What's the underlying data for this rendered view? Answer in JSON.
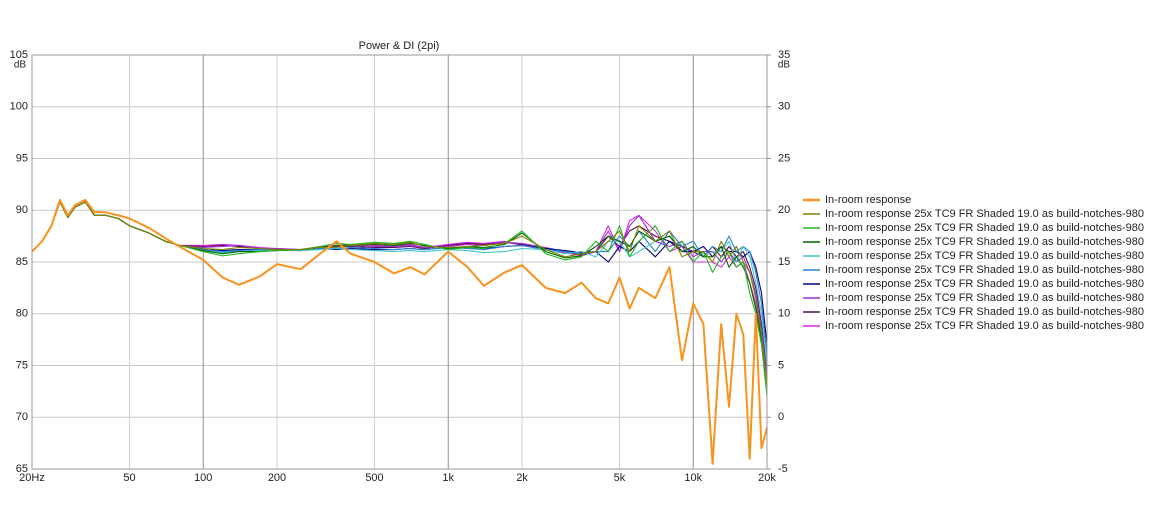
{
  "chart_data": {
    "type": "line",
    "title": "Power & DI (2pi)",
    "y_unit": "dB",
    "y2_unit": "dB",
    "xscale": "log",
    "grid": true,
    "x": [
      20,
      22,
      24,
      26,
      28,
      30,
      33,
      36,
      40,
      45,
      50,
      60,
      70,
      80,
      100,
      120,
      140,
      170,
      200,
      250,
      300,
      350,
      400,
      500,
      600,
      700,
      800,
      1000,
      1200,
      1400,
      1700,
      2000,
      2500,
      3000,
      3500,
      4000,
      4500,
      5000,
      5500,
      6000,
      7000,
      8000,
      9000,
      10000,
      11000,
      12000,
      13000,
      14000,
      15000,
      16000,
      17000,
      18000,
      19000,
      20000
    ],
    "xlim": [
      20,
      20000
    ],
    "xticks": [
      {
        "value": 20,
        "label": "20Hz"
      },
      50,
      100,
      200,
      500,
      {
        "value": 1000,
        "label": "1k"
      },
      {
        "value": 2000,
        "label": "2k"
      },
      {
        "value": 5000,
        "label": "5k"
      },
      {
        "value": 10000,
        "label": "10k"
      },
      {
        "value": 20000,
        "label": "20k"
      }
    ],
    "ylim": [
      65,
      105
    ],
    "yticks": [
      65,
      70,
      75,
      80,
      85,
      90,
      95,
      100,
      105
    ],
    "y2lim": [
      -5,
      35
    ],
    "y2ticks": [
      -5,
      0,
      5,
      10,
      15,
      20,
      25,
      30,
      35
    ],
    "series": [
      {
        "name": "In-room response",
        "color": "#f7931e",
        "values": [
          86.0,
          87.0,
          88.5,
          91.0,
          89.5,
          90.5,
          91.0,
          89.8,
          89.8,
          89.5,
          89.2,
          88.3,
          87.3,
          86.5,
          85.2,
          83.5,
          82.8,
          83.6,
          84.8,
          84.3,
          85.8,
          87.0,
          85.8,
          85.0,
          83.9,
          84.5,
          83.8,
          86.0,
          84.5,
          82.7,
          84.0,
          84.7,
          82.5,
          82.0,
          83.0,
          81.5,
          81.0,
          83.5,
          80.5,
          82.5,
          81.5,
          84.5,
          75.5,
          81.0,
          79.0,
          65.5,
          79.0,
          71.0,
          80.0,
          78.0,
          66.0,
          80.0,
          67.0,
          69.0
        ]
      },
      {
        "name": "In-room response 25x TC9 FR Shaded 19.0 as build-notches-980",
        "color": "#808000",
        "values": [
          86.0,
          87.0,
          88.5,
          90.8,
          89.3,
          90.3,
          90.8,
          89.5,
          89.5,
          89.2,
          88.5,
          87.8,
          87.0,
          86.6,
          86.3,
          86.2,
          86.4,
          86.3,
          86.2,
          86.2,
          86.4,
          86.4,
          86.6,
          86.8,
          86.7,
          86.9,
          86.5,
          86.4,
          86.5,
          86.6,
          86.8,
          87.5,
          86.2,
          85.5,
          85.8,
          86.0,
          87.0,
          88.0,
          86.0,
          88.5,
          87.0,
          88.0,
          85.5,
          86.0,
          86.0,
          85.0,
          87.0,
          85.5,
          86.5,
          85.0,
          84.0,
          81.5,
          78.0,
          73.0
        ]
      },
      {
        "name": "In-room response 25x TC9 FR Shaded 19.0 as build-notches-980",
        "color": "#22b822",
        "values": [
          86.0,
          87.0,
          88.5,
          90.8,
          89.3,
          90.3,
          90.8,
          89.5,
          89.5,
          89.2,
          88.5,
          87.8,
          87.0,
          86.6,
          86.0,
          85.6,
          85.8,
          86.0,
          86.1,
          86.2,
          86.5,
          86.8,
          86.7,
          86.9,
          86.8,
          87.0,
          86.7,
          86.2,
          86.4,
          86.3,
          86.8,
          88.0,
          85.8,
          85.2,
          85.5,
          87.0,
          86.0,
          88.5,
          85.5,
          87.0,
          88.5,
          86.0,
          87.0,
          85.0,
          86.0,
          84.0,
          85.5,
          86.0,
          84.5,
          85.0,
          82.0,
          80.0,
          77.0,
          72.0
        ]
      },
      {
        "name": "In-room response 25x TC9 FR Shaded 19.0 as build-notches-980",
        "color": "#006400",
        "values": [
          86.0,
          87.0,
          88.5,
          90.8,
          89.3,
          90.3,
          90.8,
          89.5,
          89.5,
          89.2,
          88.5,
          87.8,
          87.0,
          86.6,
          86.1,
          85.8,
          86.0,
          86.0,
          86.1,
          86.2,
          86.4,
          86.6,
          86.6,
          86.7,
          86.6,
          86.8,
          86.6,
          86.3,
          86.5,
          86.4,
          86.7,
          87.8,
          86.0,
          85.4,
          85.6,
          86.5,
          87.5,
          87.0,
          86.5,
          88.0,
          87.0,
          87.5,
          86.0,
          86.5,
          85.5,
          85.5,
          86.5,
          84.5,
          85.5,
          84.5,
          83.0,
          80.5,
          77.5,
          73.0
        ]
      },
      {
        "name": "In-room response 25x TC9 FR Shaded 19.0 as build-notches-980",
        "color": "#3cc8c8",
        "values": [
          86.0,
          87.0,
          88.5,
          90.8,
          89.3,
          90.3,
          90.8,
          89.5,
          89.5,
          89.2,
          88.5,
          87.8,
          87.0,
          86.6,
          86.1,
          85.9,
          86.0,
          86.1,
          86.1,
          86.1,
          86.2,
          86.3,
          86.2,
          86.1,
          86.0,
          86.1,
          86.0,
          86.2,
          86.1,
          85.9,
          86.0,
          86.3,
          86.2,
          85.8,
          86.0,
          85.5,
          87.0,
          87.0,
          85.5,
          86.0,
          87.0,
          87.5,
          86.0,
          86.5,
          85.5,
          86.0,
          86.0,
          87.0,
          85.0,
          86.5,
          85.5,
          83.0,
          80.0,
          75.0
        ]
      },
      {
        "name": "In-room response 25x TC9 FR Shaded 19.0 as build-notches-980",
        "color": "#2f7fd0",
        "values": [
          86.0,
          87.0,
          88.5,
          90.8,
          89.3,
          90.3,
          90.8,
          89.5,
          89.5,
          89.2,
          88.5,
          87.8,
          87.0,
          86.6,
          86.2,
          86.0,
          86.1,
          86.2,
          86.2,
          86.1,
          86.3,
          86.3,
          86.4,
          86.3,
          86.2,
          86.3,
          86.2,
          86.4,
          86.3,
          86.2,
          86.5,
          86.6,
          86.2,
          86.0,
          85.8,
          86.0,
          86.0,
          87.5,
          86.5,
          88.0,
          86.0,
          88.0,
          86.5,
          87.0,
          85.5,
          86.5,
          86.0,
          87.5,
          86.0,
          86.5,
          86.0,
          84.0,
          81.0,
          76.0
        ]
      },
      {
        "name": "In-room response 25x TC9 FR Shaded 19.0 as build-notches-980",
        "color": "#000080",
        "values": [
          86.0,
          87.0,
          88.5,
          90.8,
          89.3,
          90.3,
          90.8,
          89.5,
          89.5,
          89.2,
          88.5,
          87.8,
          87.0,
          86.6,
          86.2,
          86.1,
          86.2,
          86.2,
          86.2,
          86.1,
          86.3,
          86.2,
          86.3,
          86.2,
          86.2,
          86.3,
          86.2,
          86.4,
          86.4,
          86.3,
          86.5,
          86.6,
          86.3,
          86.1,
          85.9,
          86.0,
          85.0,
          86.5,
          86.0,
          87.0,
          85.5,
          87.0,
          86.0,
          86.0,
          86.5,
          85.5,
          86.5,
          86.0,
          86.0,
          85.5,
          86.0,
          84.5,
          82.0,
          77.0
        ]
      },
      {
        "name": "In-room response 25x TC9 FR Shaded 19.0 as build-notches-980",
        "color": "#9b30d0",
        "values": [
          86.0,
          87.0,
          88.5,
          90.8,
          89.3,
          90.3,
          90.8,
          89.5,
          89.5,
          89.2,
          88.5,
          87.8,
          87.0,
          86.6,
          86.4,
          86.5,
          86.6,
          86.3,
          86.3,
          86.2,
          86.4,
          86.5,
          86.6,
          86.5,
          86.5,
          86.6,
          86.4,
          86.5,
          86.7,
          86.6,
          86.9,
          86.8,
          86.4,
          86.0,
          85.8,
          86.0,
          88.0,
          86.0,
          88.5,
          89.5,
          87.0,
          86.5,
          87.0,
          85.5,
          86.0,
          86.0,
          85.0,
          86.0,
          85.0,
          85.5,
          84.0,
          82.0,
          78.5,
          74.0
        ]
      },
      {
        "name": "In-room response 25x TC9 FR Shaded 19.0 as build-notches-980",
        "color": "#5a0a5a",
        "values": [
          86.0,
          87.0,
          88.5,
          90.8,
          89.3,
          90.3,
          90.8,
          89.5,
          89.5,
          89.2,
          88.5,
          87.8,
          87.0,
          86.6,
          86.5,
          86.6,
          86.5,
          86.3,
          86.2,
          86.2,
          86.4,
          86.5,
          86.5,
          86.4,
          86.4,
          86.5,
          86.3,
          86.6,
          86.8,
          86.7,
          86.9,
          86.7,
          86.3,
          86.0,
          85.7,
          86.0,
          87.5,
          86.5,
          88.0,
          88.5,
          87.5,
          87.0,
          86.5,
          86.0,
          85.5,
          86.5,
          85.5,
          86.5,
          85.5,
          86.0,
          84.5,
          82.5,
          79.0,
          74.5
        ]
      },
      {
        "name": "In-room response 25x TC9 FR Shaded 19.0 as build-notches-980",
        "color": "#e020e0",
        "values": [
          86.0,
          87.0,
          88.5,
          90.8,
          89.3,
          90.3,
          90.8,
          89.5,
          89.5,
          89.2,
          88.5,
          87.8,
          87.0,
          86.6,
          86.6,
          86.7,
          86.6,
          86.4,
          86.3,
          86.2,
          86.5,
          86.6,
          86.7,
          86.6,
          86.5,
          86.7,
          86.4,
          86.7,
          86.9,
          86.8,
          87.0,
          86.6,
          86.2,
          85.9,
          85.6,
          86.0,
          88.5,
          86.0,
          89.0,
          89.5,
          88.0,
          86.0,
          86.5,
          85.0,
          85.0,
          85.0,
          84.5,
          85.5,
          84.5,
          85.0,
          83.0,
          81.0,
          77.5,
          73.5
        ]
      }
    ]
  }
}
